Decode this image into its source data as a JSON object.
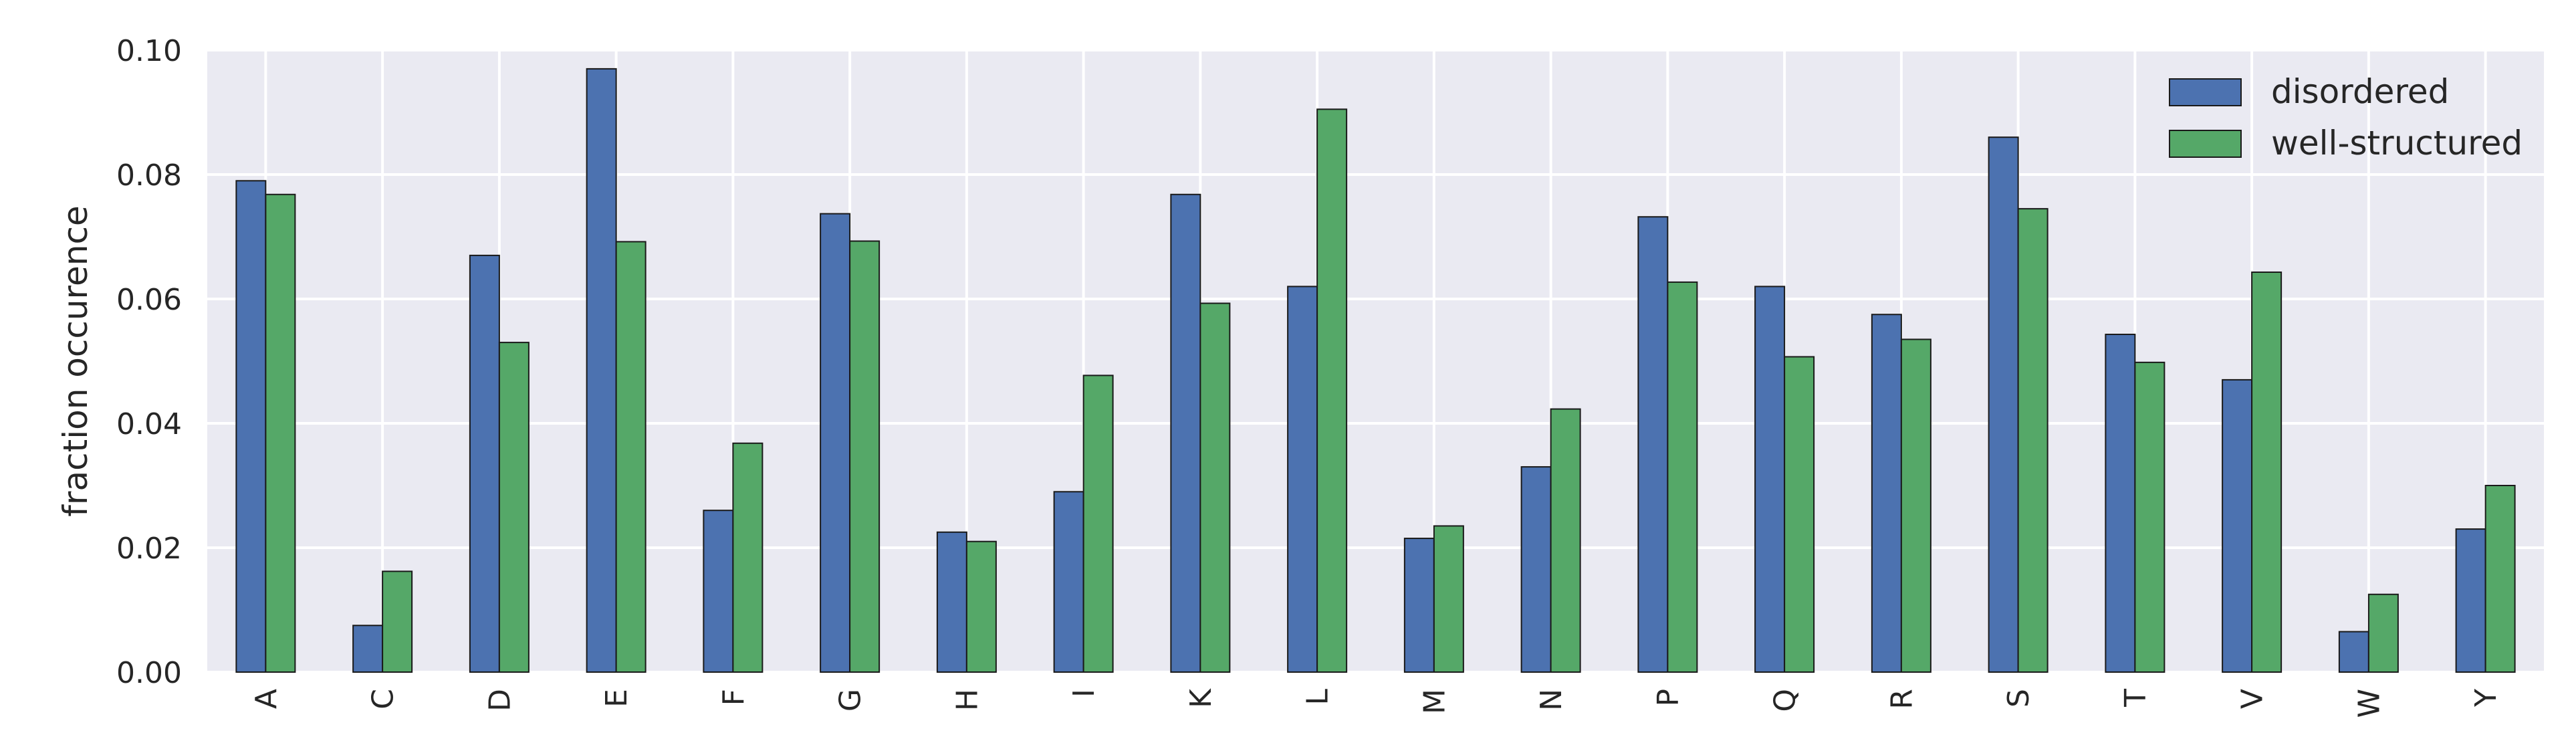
{
  "chart_data": {
    "type": "bar",
    "categories": [
      "A",
      "C",
      "D",
      "E",
      "F",
      "G",
      "H",
      "I",
      "K",
      "L",
      "M",
      "N",
      "P",
      "Q",
      "R",
      "S",
      "T",
      "V",
      "W",
      "Y"
    ],
    "series": [
      {
        "name": "disordered",
        "color": "#4c72b0",
        "values": [
          0.079,
          0.0075,
          0.067,
          0.097,
          0.026,
          0.0737,
          0.0225,
          0.029,
          0.0768,
          0.062,
          0.0215,
          0.033,
          0.0732,
          0.062,
          0.0575,
          0.086,
          0.0543,
          0.047,
          0.0065,
          0.023
        ]
      },
      {
        "name": "well-structured",
        "color": "#55a868",
        "values": [
          0.0768,
          0.0162,
          0.053,
          0.0692,
          0.0368,
          0.0693,
          0.021,
          0.0477,
          0.0593,
          0.0905,
          0.0235,
          0.0423,
          0.0627,
          0.0507,
          0.0535,
          0.0745,
          0.0498,
          0.0643,
          0.0125,
          0.03
        ]
      }
    ],
    "yticks": [
      "0.00",
      "0.02",
      "0.04",
      "0.06",
      "0.08",
      "0.10"
    ],
    "ylabel": "fraction occurence",
    "xlabel": "",
    "ylim": [
      0,
      0.1
    ],
    "grid": true,
    "legend_position": "top-right",
    "background_color": "#eaeaf2"
  }
}
